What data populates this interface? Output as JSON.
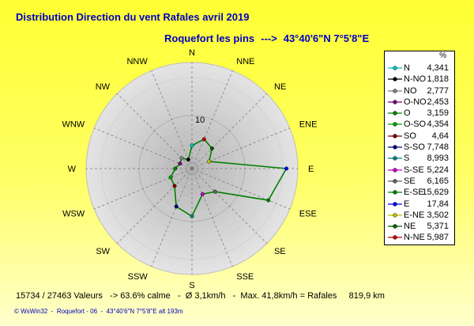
{
  "header": {
    "title": "Distribution Direction du vent Rafales  avril 2019",
    "location": "Roquefort les pins",
    "arrow": "--->",
    "coords": "43°40'6\"N 7°5'8\"E"
  },
  "legend": {
    "unit_label": "%",
    "position": "right"
  },
  "footer": {
    "summary": "15734 / 27463 Valeurs   -> 63.6% calme   -  Ø 3,1km/h   -  Max. 41,8km/h = Rafales     819,9 km",
    "credit": "© WsWin32  -  Roquefort - 06  -  43°40'6\"N 7°5'8\"E alt 193m"
  },
  "colors": {
    "background": "#ffff33",
    "text_blue": "#0000c0",
    "polygon": "#008000",
    "disc_outer": "#e4e4e4",
    "disc_inner": "#b4b4b4"
  },
  "chart_data": {
    "type": "radar",
    "title": "Distribution Direction du vent Rafales  avril 2019",
    "unit": "%",
    "rmax": 20,
    "ring_label": "10",
    "grid": true,
    "directions": [
      "N",
      "NNE",
      "NE",
      "ENE",
      "E",
      "ESE",
      "SE",
      "SSE",
      "S",
      "SSW",
      "SW",
      "WSW",
      "W",
      "WNW",
      "NW",
      "NNW"
    ],
    "series": [
      {
        "name": "Rafales",
        "values": [
          4.341,
          5.987,
          5.371,
          3.502,
          17.84,
          15.629,
          6.165,
          5.224,
          8.993,
          7.748,
          4.64,
          4.354,
          3.159,
          2.453,
          2.777,
          1.818
        ]
      }
    ],
    "legend_entries": [
      {
        "name": "N",
        "value": "4,341",
        "color": "#00c0c0"
      },
      {
        "name": "N-NO",
        "value": "1,818",
        "color": "#000000"
      },
      {
        "name": "NO",
        "value": "2,777",
        "color": "#808080"
      },
      {
        "name": "O-NO",
        "value": "2,453",
        "color": "#800080"
      },
      {
        "name": "O",
        "value": "3,159",
        "color": "#008000"
      },
      {
        "name": "O-SO",
        "value": "4,354",
        "color": "#00a000"
      },
      {
        "name": "SO",
        "value": "4,64",
        "color": "#800000"
      },
      {
        "name": "S-SO",
        "value": "7,748",
        "color": "#000080"
      },
      {
        "name": "S",
        "value": "8,993",
        "color": "#008080"
      },
      {
        "name": "S-SE",
        "value": "5,224",
        "color": "#c000c0"
      },
      {
        "name": "SE",
        "value": "6,165",
        "color": "#606060"
      },
      {
        "name": "E-SE",
        "value": "15,629",
        "color": "#008000"
      },
      {
        "name": "E",
        "value": "17,84",
        "color": "#0000ff"
      },
      {
        "name": "E-NE",
        "value": "3,502",
        "color": "#c0c000"
      },
      {
        "name": "NE",
        "value": "5,371",
        "color": "#006000"
      },
      {
        "name": "N-NE",
        "value": "5,987",
        "color": "#c00000"
      }
    ]
  }
}
